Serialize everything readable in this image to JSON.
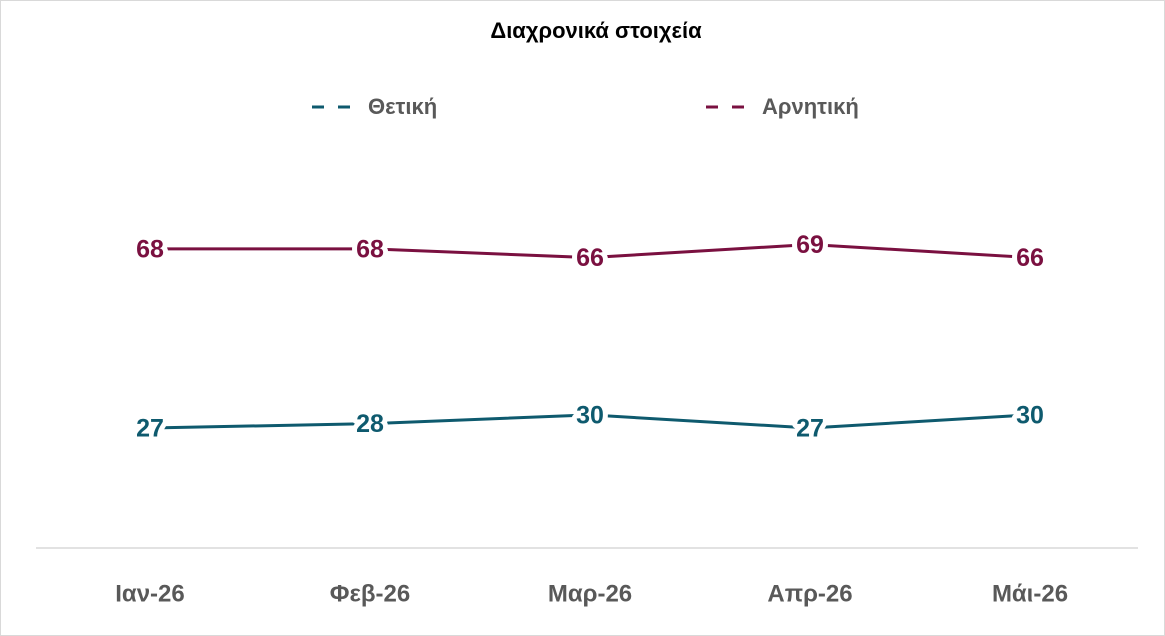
{
  "chart_data": {
    "type": "line",
    "title": "Διαχρονικά στοιχεία",
    "categories": [
      "Ιαν-26",
      "Φεβ-26",
      "Μαρ-26",
      "Απρ-26",
      "Μάι-26"
    ],
    "series": [
      {
        "name": "Θετική",
        "color": "#0e5a6e",
        "values": [
          27,
          28,
          30,
          27,
          30
        ]
      },
      {
        "name": "Αρνητική",
        "color": "#7a1040",
        "values": [
          68,
          68,
          66,
          69,
          66
        ]
      }
    ],
    "ylim": [
      0,
      100
    ],
    "grid": false
  }
}
